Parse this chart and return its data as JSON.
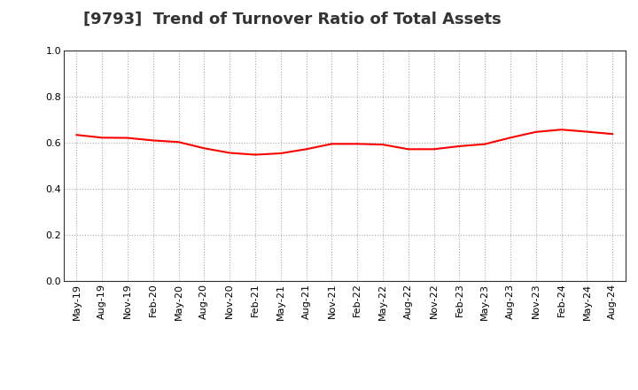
{
  "title": "[9793]  Trend of Turnover Ratio of Total Assets",
  "x_labels": [
    "May-19",
    "Aug-19",
    "Nov-19",
    "Feb-20",
    "May-20",
    "Aug-20",
    "Nov-20",
    "Feb-21",
    "May-21",
    "Aug-21",
    "Nov-21",
    "Feb-22",
    "May-22",
    "Aug-22",
    "Nov-22",
    "Feb-23",
    "May-23",
    "Aug-23",
    "Nov-23",
    "Feb-24",
    "May-24",
    "Aug-24"
  ],
  "values": [
    0.634,
    0.622,
    0.621,
    0.61,
    0.603,
    0.576,
    0.556,
    0.548,
    0.554,
    0.572,
    0.595,
    0.595,
    0.592,
    0.572,
    0.572,
    0.585,
    0.594,
    0.622,
    0.647,
    0.657,
    0.648,
    0.638
  ],
  "line_color": "#FF0000",
  "line_width": 1.5,
  "ylim": [
    0.0,
    1.0
  ],
  "yticks": [
    0.0,
    0.2,
    0.4,
    0.6,
    0.8,
    1.0
  ],
  "grid_color": "#AAAAAA",
  "grid_linestyle": ":",
  "background_color": "#FFFFFF",
  "title_fontsize": 13,
  "tick_fontsize": 8
}
